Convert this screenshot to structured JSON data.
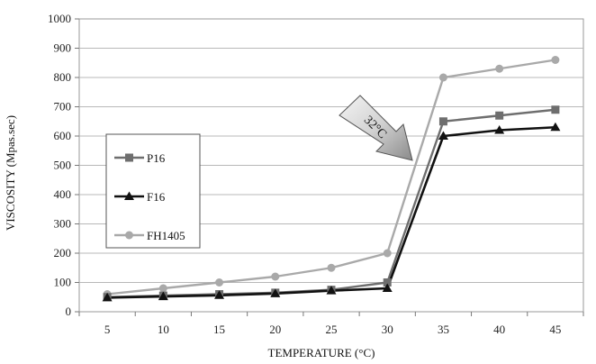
{
  "chart_data": {
    "type": "line",
    "xlabel": "TEMPERATURE (°C)",
    "ylabel": "VISCOSITY (Mpas.sec)",
    "x": [
      5,
      10,
      15,
      20,
      25,
      30,
      35,
      40,
      45
    ],
    "x_tick_labels": [
      "5",
      "10",
      "15",
      "20",
      "25",
      "30",
      "35",
      "40",
      "45"
    ],
    "y_ticks": [
      0,
      100,
      200,
      300,
      400,
      500,
      600,
      700,
      800,
      900,
      1000
    ],
    "y_tick_labels": [
      "0",
      "100",
      "200",
      "300",
      "400",
      "500",
      "600",
      "700",
      "800",
      "900",
      "1000"
    ],
    "ylim": [
      0,
      1000
    ],
    "grid": "horizontal",
    "legend_position": "left",
    "series": [
      {
        "name": "P16",
        "marker": "square",
        "color": "#6e6e6e",
        "values": [
          50,
          55,
          60,
          65,
          75,
          100,
          650,
          670,
          690
        ]
      },
      {
        "name": "F16",
        "marker": "triangle",
        "color": "#111111",
        "values": [
          48,
          52,
          56,
          62,
          72,
          80,
          600,
          620,
          630
        ]
      },
      {
        "name": "FH1405",
        "marker": "circle",
        "color": "#a9a9a9",
        "values": [
          60,
          80,
          100,
          120,
          150,
          200,
          800,
          830,
          860
        ]
      }
    ],
    "annotations": [
      {
        "text": "32°C",
        "style": "arrow-down-right"
      }
    ]
  }
}
